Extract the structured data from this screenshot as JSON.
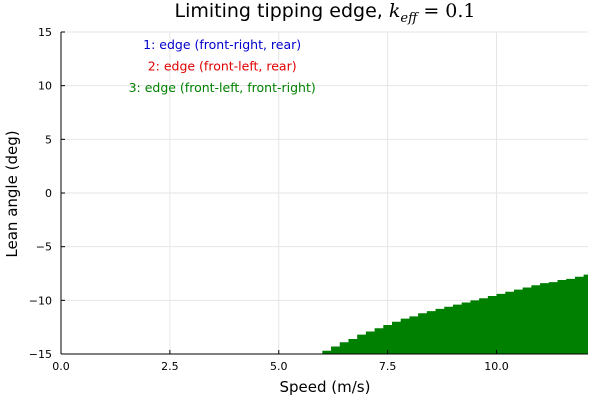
{
  "chart_data": {
    "type": "area",
    "title_prefix": "Limiting tipping edge, ",
    "title_math_var": "k",
    "title_math_sub": "eff",
    "title_math_rest": " = 0.1",
    "xlabel": "Speed (m/s)",
    "ylabel": "Lean angle (deg)",
    "xlim": [
      0,
      12.1
    ],
    "ylim": [
      -15,
      15
    ],
    "xticks": [
      {
        "value": 0,
        "label": "0.0"
      },
      {
        "value": 2.5,
        "label": "2.5"
      },
      {
        "value": 5,
        "label": "5.0"
      },
      {
        "value": 7.5,
        "label": "7.5"
      },
      {
        "value": 10,
        "label": "10.0"
      }
    ],
    "yticks": [
      {
        "value": 15,
        "label": "15"
      },
      {
        "value": 10,
        "label": "10"
      },
      {
        "value": 5,
        "label": "5"
      },
      {
        "value": 0,
        "label": "0"
      },
      {
        "value": -5,
        "label": "−5"
      },
      {
        "value": -10,
        "label": "−10"
      },
      {
        "value": -15,
        "label": "−15"
      }
    ],
    "grid": true,
    "annotations": [
      {
        "text": "1: edge (front-right, rear)",
        "color": "#0000cc",
        "x": 3.7,
        "y": 13.8
      },
      {
        "text": "2: edge (front-left, rear)",
        "color": "#e00000",
        "x": 3.7,
        "y": 11.8
      },
      {
        "text": "3: edge (front-left, front-right)",
        "color": "#008000",
        "x": 3.7,
        "y": 9.8
      }
    ],
    "series": [
      {
        "fill_color": "#008000",
        "x": [
          5.9,
          6.0,
          6.2,
          6.4,
          6.6,
          6.8,
          7.0,
          7.2,
          7.4,
          7.6,
          7.8,
          8.0,
          8.2,
          8.4,
          8.6,
          8.8,
          9.0,
          9.2,
          9.4,
          9.6,
          9.8,
          10.0,
          10.2,
          10.4,
          10.6,
          10.8,
          11.0,
          11.2,
          11.4,
          11.6,
          11.8,
          12.0,
          12.1
        ],
        "y": [
          -15.0,
          -14.7,
          -14.3,
          -13.9,
          -13.6,
          -13.2,
          -12.9,
          -12.6,
          -12.3,
          -12.0,
          -11.7,
          -11.5,
          -11.2,
          -11.0,
          -10.8,
          -10.6,
          -10.4,
          -10.2,
          -10.0,
          -9.8,
          -9.6,
          -9.4,
          -9.2,
          -9.0,
          -8.8,
          -8.6,
          -8.4,
          -8.3,
          -8.1,
          -8.0,
          -7.8,
          -7.6,
          -7.5
        ]
      }
    ]
  }
}
